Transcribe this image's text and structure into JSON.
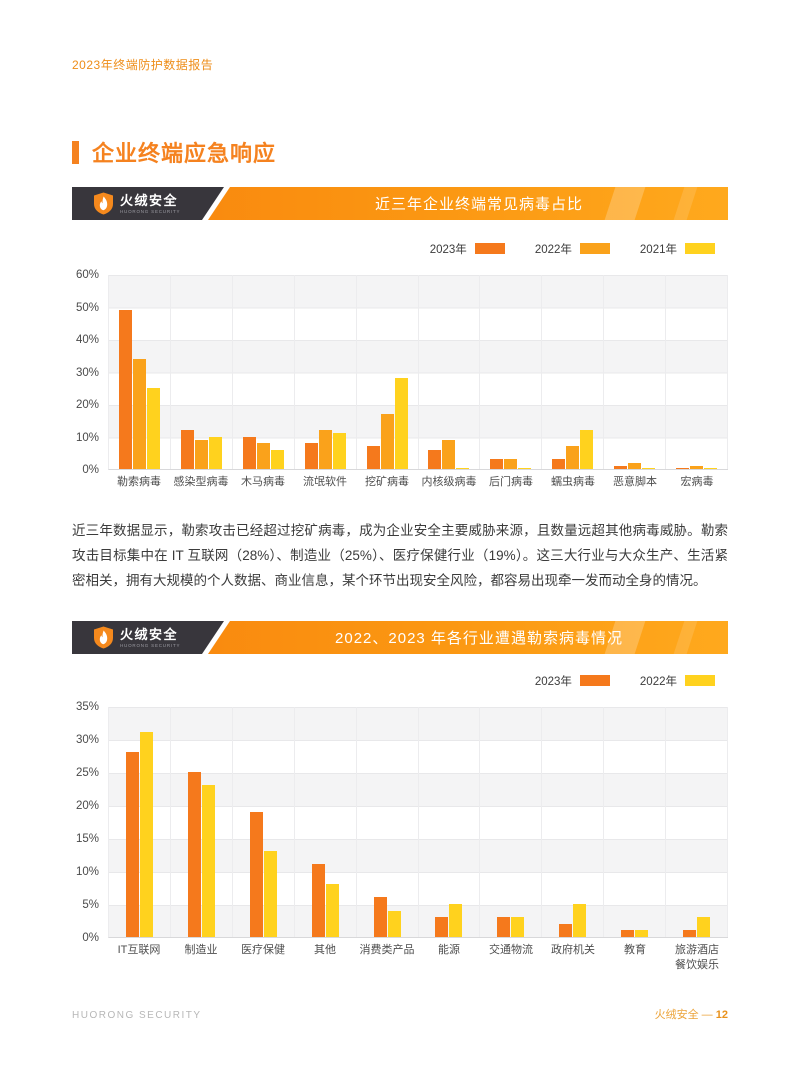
{
  "page": {
    "header_title": "2023年终端防护数据报告",
    "section_title": "企业终端应急响应",
    "brand_cn": "火绒安全",
    "brand_en": "HUORONG SECURITY",
    "footer_left": "HUORONG SECURITY",
    "footer_right_label": "火绒安全 —",
    "footer_page_number": "12"
  },
  "colors": {
    "accent": "#f5821f",
    "banner_dark": "#38363c",
    "banner_gradient_start": "#f8830d",
    "banner_gradient_end": "#ffa91d",
    "bar_2023": "#f5791c",
    "bar_2022_amber": "#faa21b",
    "bar_yellow": "#ffd21e",
    "grid_band": "#f4f4f5",
    "grid_line": "#e8e8ea"
  },
  "paragraph": "近三年数据显示，勒索攻击已经超过挖矿病毒，成为企业安全主要威胁来源，且数量远超其他病毒威胁。勒索攻击目标集中在 IT 互联网（28%）、制造业（25%）、医疗保健行业（19%）。这三大行业与大众生产、生活紧密相关，拥有大规模的个人数据、商业信息，某个环节出现安全风险，都容易出现牵一发而动全身的情况。",
  "chart_data": [
    {
      "type": "bar",
      "title": "近三年企业终端常见病毒占比",
      "categories": [
        "勒索病毒",
        "感染型病毒",
        "木马病毒",
        "流氓软件",
        "挖矿病毒",
        "内核级病毒",
        "后门病毒",
        "蠕虫病毒",
        "恶意脚本",
        "宏病毒"
      ],
      "series": [
        {
          "name": "2023年",
          "color": "#f5791c",
          "values": [
            49,
            12,
            10,
            8,
            7,
            6,
            3,
            3,
            1,
            0.3
          ]
        },
        {
          "name": "2022年",
          "color": "#faa21b",
          "values": [
            34,
            9,
            8,
            12,
            17,
            9,
            3,
            7,
            2,
            1
          ]
        },
        {
          "name": "2021年",
          "color": "#ffd21e",
          "values": [
            25,
            10,
            6,
            11,
            28,
            0.3,
            0.3,
            12,
            0.3,
            0.3
          ]
        }
      ],
      "ylabel": "",
      "xlabel": "",
      "ylim": [
        0,
        60
      ],
      "ytick_step": 10,
      "ytick_suffix": "%",
      "grid": "horizontal-with-banded-rows-and-column-separators",
      "legend_position": "top-right"
    },
    {
      "type": "bar",
      "title": "2022、2023 年各行业遭遇勒索病毒情况",
      "categories": [
        "IT互联网",
        "制造业",
        "医疗保健",
        "其他",
        "消费类产品",
        "能源",
        "交通物流",
        "政府机关",
        "教育",
        "旅游酒店\n餐饮娱乐"
      ],
      "series": [
        {
          "name": "2023年",
          "color": "#f5791c",
          "values": [
            28,
            25,
            19,
            11,
            6,
            3,
            3,
            2,
            1,
            1
          ]
        },
        {
          "name": "2022年",
          "color": "#ffd21e",
          "values": [
            31,
            23,
            13,
            8,
            4,
            5,
            3,
            5,
            1,
            3
          ]
        }
      ],
      "ylabel": "",
      "xlabel": "",
      "ylim": [
        0,
        35
      ],
      "ytick_step": 5,
      "ytick_suffix": "%",
      "grid": "horizontal-with-banded-rows-and-column-separators",
      "legend_position": "top-right"
    }
  ]
}
